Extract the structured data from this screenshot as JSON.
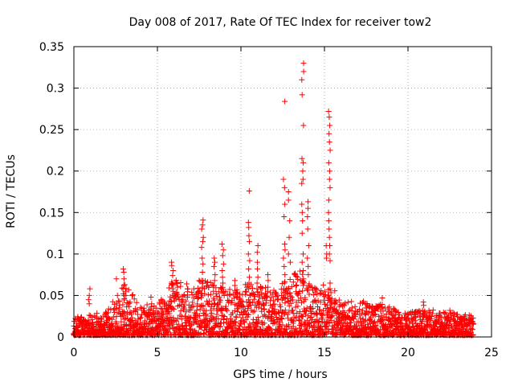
{
  "chart_data": {
    "type": "scatter",
    "title": "Day 008 of 2017, Rate Of TEC Index for receiver tow2",
    "xlabel": "GPS time / hours",
    "ylabel": "ROTI / TECUs",
    "xlim": [
      0,
      25
    ],
    "ylim": [
      0,
      0.35
    ],
    "xticks": [
      0,
      5,
      10,
      15,
      20,
      25
    ],
    "yticks": [
      0,
      0.05,
      0.1,
      0.15,
      0.2,
      0.25,
      0.3,
      0.35
    ],
    "xtick_labels": [
      "0",
      "5",
      "10",
      "15",
      "20",
      "25"
    ],
    "ytick_labels": [
      "0",
      "0.05",
      "0.1",
      "0.15",
      "0.2",
      "0.25",
      "0.3",
      "0.35"
    ],
    "grid": true,
    "marker": "+",
    "color": "#ff0000",
    "data_extent_hours": [
      0,
      23.9
    ],
    "envelope": [
      [
        0,
        0.022
      ],
      [
        1,
        0.025
      ],
      [
        2,
        0.03
      ],
      [
        2.7,
        0.055
      ],
      [
        3.0,
        0.065
      ],
      [
        4,
        0.035
      ],
      [
        5,
        0.04
      ],
      [
        5.5,
        0.05
      ],
      [
        6,
        0.07
      ],
      [
        7,
        0.055
      ],
      [
        7.7,
        0.07
      ],
      [
        8.5,
        0.06
      ],
      [
        9.5,
        0.055
      ],
      [
        10.5,
        0.065
      ],
      [
        11,
        0.06
      ],
      [
        12,
        0.055
      ],
      [
        12.7,
        0.07
      ],
      [
        13.5,
        0.08
      ],
      [
        14,
        0.07
      ],
      [
        15,
        0.065
      ],
      [
        15.5,
        0.06
      ],
      [
        16,
        0.04
      ],
      [
        17,
        0.042
      ],
      [
        18,
        0.04
      ],
      [
        19,
        0.035
      ],
      [
        20,
        0.028
      ],
      [
        21,
        0.032
      ],
      [
        22,
        0.03
      ],
      [
        23,
        0.028
      ],
      [
        23.9,
        0.025
      ]
    ],
    "spikes": [
      {
        "x": 0.9,
        "values": [
          0.058,
          0.05,
          0.045,
          0.04
        ]
      },
      {
        "x": 2.5,
        "values": [
          0.07
        ]
      },
      {
        "x": 3.0,
        "values": [
          0.082,
          0.078,
          0.07,
          0.063,
          0.058,
          0.052,
          0.046
        ]
      },
      {
        "x": 4.6,
        "values": [
          0.048,
          0.04
        ]
      },
      {
        "x": 5.9,
        "values": [
          0.09,
          0.086,
          0.08,
          0.074,
          0.066,
          0.058,
          0.05
        ]
      },
      {
        "x": 6.8,
        "values": [
          0.064,
          0.058
        ]
      },
      {
        "x": 7.7,
        "values": [
          0.141,
          0.135,
          0.13,
          0.12,
          0.115,
          0.108,
          0.095,
          0.088,
          0.078,
          0.068,
          0.06,
          0.052
        ]
      },
      {
        "x": 8.4,
        "values": [
          0.095,
          0.09,
          0.085,
          0.075,
          0.068,
          0.062,
          0.055
        ]
      },
      {
        "x": 8.9,
        "values": [
          0.112,
          0.105,
          0.098,
          0.088,
          0.08,
          0.072,
          0.065,
          0.058
        ]
      },
      {
        "x": 9.6,
        "values": [
          0.068,
          0.062,
          0.056
        ]
      },
      {
        "x": 10.5,
        "values": [
          0.176,
          0.138,
          0.132,
          0.122,
          0.115,
          0.1,
          0.092,
          0.082,
          0.072,
          0.065,
          0.058,
          0.05
        ]
      },
      {
        "x": 11.0,
        "values": [
          0.11,
          0.102,
          0.09,
          0.082,
          0.072,
          0.065,
          0.058
        ]
      },
      {
        "x": 11.6,
        "values": [
          0.075,
          0.068,
          0.06
        ]
      },
      {
        "x": 12.6,
        "values": [
          0.284,
          0.19,
          0.18,
          0.16,
          0.145,
          0.112,
          0.105,
          0.095,
          0.085,
          0.075,
          0.065,
          0.058
        ]
      },
      {
        "x": 12.9,
        "values": [
          0.175,
          0.165,
          0.14,
          0.12,
          0.1,
          0.09
        ]
      },
      {
        "x": 13.7,
        "values": [
          0.33,
          0.32,
          0.31,
          0.292,
          0.255,
          0.215,
          0.21,
          0.2,
          0.19,
          0.185,
          0.16,
          0.15,
          0.14,
          0.125,
          0.1,
          0.09,
          0.08,
          0.07,
          0.062
        ]
      },
      {
        "x": 14.0,
        "values": [
          0.163,
          0.155,
          0.145,
          0.13,
          0.11,
          0.095,
          0.085,
          0.075
        ]
      },
      {
        "x": 15.3,
        "values": [
          0.272,
          0.265,
          0.255,
          0.245,
          0.235,
          0.225,
          0.21,
          0.2,
          0.19,
          0.18,
          0.165,
          0.15,
          0.14,
          0.13,
          0.12,
          0.11,
          0.1,
          0.092,
          0.065
        ]
      },
      {
        "x": 15.1,
        "values": [
          0.11,
          0.1,
          0.095
        ]
      },
      {
        "x": 18.5,
        "values": [
          0.047
        ]
      },
      {
        "x": 20.9,
        "values": [
          0.042,
          0.038
        ]
      },
      {
        "x": 22.5,
        "values": [
          0.032
        ]
      }
    ]
  }
}
